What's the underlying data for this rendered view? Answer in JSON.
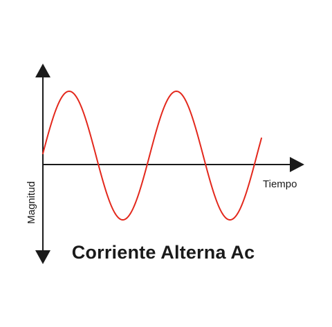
{
  "title": "Corriente Alterna Ac",
  "axes": {
    "x_label": "Tiempo",
    "y_label": "Magnitud"
  },
  "colors": {
    "axis": "#1a1a1a",
    "wave": "#e3281c",
    "background": "#ffffff"
  },
  "wave": {
    "shape": "sine",
    "cycles_shown": 2.3
  }
}
